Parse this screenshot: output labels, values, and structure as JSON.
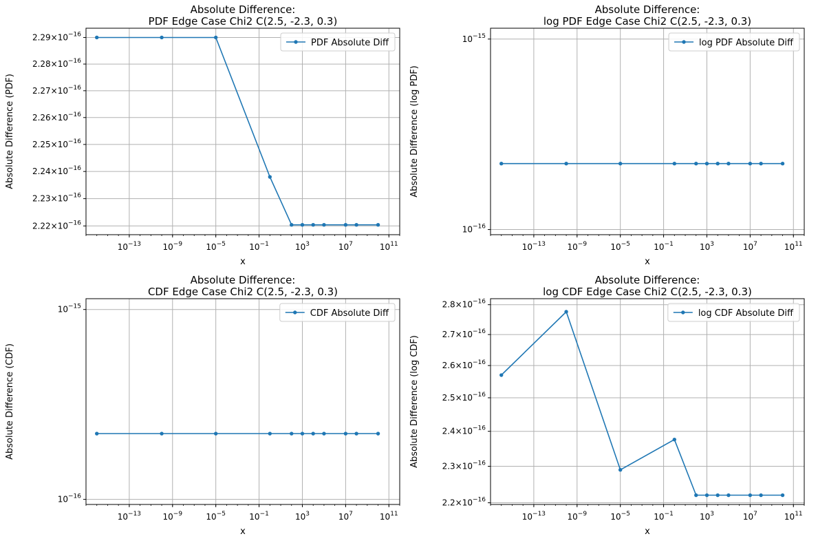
{
  "chart_data": [
    {
      "type": "line",
      "title": "Absolute Difference:",
      "subtitle": "PDF Edge Case Chi2 C(2.5, -2.3, 0.3)",
      "xlabel": "x",
      "ylabel": "Absolute Difference (PDF)",
      "xscale": "log",
      "yscale": "log",
      "xlim": [
        1e-17,
        1000000000000.0
      ],
      "ylim": [
        2.2168e-16,
        2.2935e-16
      ],
      "xticks": [
        {
          "label": "10",
          "exp": "−13",
          "value": 1e-13
        },
        {
          "label": "10",
          "exp": "−9",
          "value": 1e-09
        },
        {
          "label": "10",
          "exp": "−5",
          "value": 1e-05
        },
        {
          "label": "10",
          "exp": "−1",
          "value": 0.1
        },
        {
          "label": "10",
          "exp": "3",
          "value": 1000.0
        },
        {
          "label": "10",
          "exp": "7",
          "value": 10000000.0
        },
        {
          "label": "10",
          "exp": "11",
          "value": 100000000000.0
        }
      ],
      "yticks": [
        {
          "label": "2.29×10",
          "exp": "−16",
          "value": 2.29e-16
        },
        {
          "label": "2.28×10",
          "exp": "−16",
          "value": 2.28e-16
        },
        {
          "label": "2.27×10",
          "exp": "−16",
          "value": 2.27e-16
        },
        {
          "label": "2.26×10",
          "exp": "−16",
          "value": 2.26e-16
        },
        {
          "label": "2.25×10",
          "exp": "−16",
          "value": 2.25e-16
        },
        {
          "label": "2.24×10",
          "exp": "−16",
          "value": 2.24e-16
        },
        {
          "label": "2.23×10",
          "exp": "−16",
          "value": 2.23e-16
        },
        {
          "label": "2.22×10",
          "exp": "−16",
          "value": 2.22e-16
        }
      ],
      "grid": true,
      "legend_position": "top-right",
      "series": [
        {
          "name": "PDF Absolute Diff",
          "color": "#1f77b4",
          "x": [
            1e-16,
            1e-10,
            1e-05,
            1,
            100,
            1000,
            10000,
            100000,
            10000000.0,
            100000000.0,
            10000000000.0
          ],
          "y": [
            2.29e-16,
            2.29e-16,
            2.29e-16,
            2.238e-16,
            2.2204e-16,
            2.2204e-16,
            2.2204e-16,
            2.2204e-16,
            2.2204e-16,
            2.2204e-16,
            2.2204e-16
          ]
        }
      ]
    },
    {
      "type": "line",
      "title": "Absolute Difference:",
      "subtitle": "log PDF Edge Case Chi2 C(2.5, -2.3, 0.3)",
      "xlabel": "x",
      "ylabel": "Absolute Difference (log PDF)",
      "xscale": "log",
      "yscale": "log",
      "xlim": [
        1e-17,
        1000000000000.0
      ],
      "ylim": [
        9.4e-17,
        1.14e-15
      ],
      "xticks": [
        {
          "label": "10",
          "exp": "−13",
          "value": 1e-13
        },
        {
          "label": "10",
          "exp": "−9",
          "value": 1e-09
        },
        {
          "label": "10",
          "exp": "−5",
          "value": 1e-05
        },
        {
          "label": "10",
          "exp": "−1",
          "value": 0.1
        },
        {
          "label": "10",
          "exp": "3",
          "value": 1000.0
        },
        {
          "label": "10",
          "exp": "7",
          "value": 10000000.0
        },
        {
          "label": "10",
          "exp": "11",
          "value": 100000000000.0
        }
      ],
      "yticks": [
        {
          "label": "10",
          "exp": "−15",
          "value": 1e-15
        },
        {
          "label": "10",
          "exp": "−16",
          "value": 1e-16
        }
      ],
      "grid": true,
      "legend_position": "top-right",
      "series": [
        {
          "name": "log PDF Absolute Diff",
          "color": "#1f77b4",
          "x": [
            1e-16,
            1e-10,
            1e-05,
            1,
            100,
            1000,
            10000,
            100000,
            10000000.0,
            100000000.0,
            10000000000.0
          ],
          "y": [
            2.22e-16,
            2.22e-16,
            2.22e-16,
            2.22e-16,
            2.22e-16,
            2.22e-16,
            2.22e-16,
            2.22e-16,
            2.22e-16,
            2.22e-16,
            2.22e-16
          ]
        }
      ]
    },
    {
      "type": "line",
      "title": "Absolute Difference:",
      "subtitle": "CDF Edge Case Chi2 C(2.5, -2.3, 0.3)",
      "xlabel": "x",
      "ylabel": "Absolute Difference (CDF)",
      "xscale": "log",
      "yscale": "log",
      "xlim": [
        1e-17,
        1000000000000.0
      ],
      "ylim": [
        9.4e-17,
        1.14e-15
      ],
      "xticks": [
        {
          "label": "10",
          "exp": "−13",
          "value": 1e-13
        },
        {
          "label": "10",
          "exp": "−9",
          "value": 1e-09
        },
        {
          "label": "10",
          "exp": "−5",
          "value": 1e-05
        },
        {
          "label": "10",
          "exp": "−1",
          "value": 0.1
        },
        {
          "label": "10",
          "exp": "3",
          "value": 1000.0
        },
        {
          "label": "10",
          "exp": "7",
          "value": 10000000.0
        },
        {
          "label": "10",
          "exp": "11",
          "value": 100000000000.0
        }
      ],
      "yticks": [
        {
          "label": "10",
          "exp": "−15",
          "value": 1e-15
        },
        {
          "label": "10",
          "exp": "−16",
          "value": 1e-16
        }
      ],
      "grid": true,
      "legend_position": "top-right",
      "series": [
        {
          "name": "CDF Absolute Diff",
          "color": "#1f77b4",
          "x": [
            1e-16,
            1e-10,
            1e-05,
            1,
            100,
            1000,
            10000,
            100000,
            10000000.0,
            100000000.0,
            10000000000.0
          ],
          "y": [
            2.22e-16,
            2.22e-16,
            2.22e-16,
            2.22e-16,
            2.22e-16,
            2.22e-16,
            2.22e-16,
            2.22e-16,
            2.22e-16,
            2.22e-16,
            2.22e-16
          ]
        }
      ]
    },
    {
      "type": "line",
      "title": "Absolute Difference:",
      "subtitle": "log CDF Edge Case Chi2 C(2.5, -2.3, 0.3)",
      "xlabel": "x",
      "ylabel": "Absolute Difference (log CDF)",
      "xscale": "log",
      "yscale": "log",
      "xlim": [
        1e-17,
        1000000000000.0
      ],
      "ylim": [
        2.1955e-16,
        2.8205e-16
      ],
      "xticks": [
        {
          "label": "10",
          "exp": "−13",
          "value": 1e-13
        },
        {
          "label": "10",
          "exp": "−9",
          "value": 1e-09
        },
        {
          "label": "10",
          "exp": "−5",
          "value": 1e-05
        },
        {
          "label": "10",
          "exp": "−1",
          "value": 0.1
        },
        {
          "label": "10",
          "exp": "3",
          "value": 1000.0
        },
        {
          "label": "10",
          "exp": "7",
          "value": 10000000.0
        },
        {
          "label": "10",
          "exp": "11",
          "value": 100000000000.0
        }
      ],
      "yticks": [
        {
          "label": "2.8×10",
          "exp": "−16",
          "value": 2.8e-16
        },
        {
          "label": "2.7×10",
          "exp": "−16",
          "value": 2.7e-16
        },
        {
          "label": "2.6×10",
          "exp": "−16",
          "value": 2.6e-16
        },
        {
          "label": "2.5×10",
          "exp": "−16",
          "value": 2.5e-16
        },
        {
          "label": "2.4×10",
          "exp": "−16",
          "value": 2.4e-16
        },
        {
          "label": "2.3×10",
          "exp": "−16",
          "value": 2.3e-16
        },
        {
          "label": "2.2×10",
          "exp": "−16",
          "value": 2.2e-16
        }
      ],
      "grid": true,
      "legend_position": "top-right",
      "series": [
        {
          "name": "log CDF Absolute Diff",
          "color": "#1f77b4",
          "x": [
            1e-16,
            1e-10,
            1e-05,
            1,
            100,
            1000,
            10000,
            100000,
            10000000.0,
            100000000.0,
            10000000000.0
          ],
          "y": [
            2.57e-16,
            2.776e-16,
            2.29e-16,
            2.376e-16,
            2.2204e-16,
            2.2204e-16,
            2.2204e-16,
            2.2204e-16,
            2.2204e-16,
            2.2204e-16,
            2.2204e-16
          ]
        }
      ]
    }
  ]
}
